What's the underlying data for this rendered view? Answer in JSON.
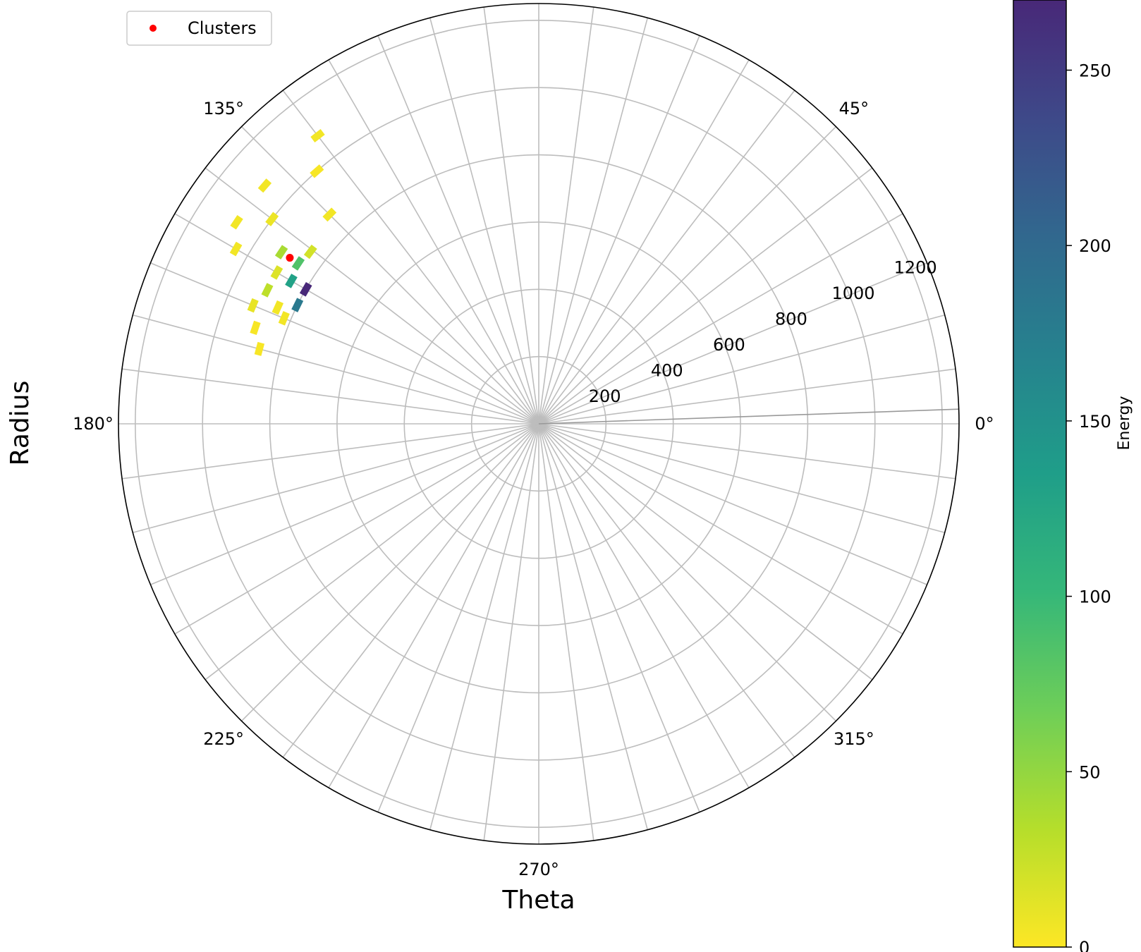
{
  "chart_data": {
    "type": "heatmap",
    "projection": "polar",
    "xlabel": "Theta",
    "ylabel": "Radius",
    "theta_ticks_deg": [
      0,
      45,
      135,
      180,
      225,
      270,
      315
    ],
    "theta_tick_labels": [
      "0°",
      "45°",
      "135°",
      "180°",
      "225°",
      "270°",
      "315°"
    ],
    "radial_ticks": [
      200,
      400,
      600,
      800,
      1000,
      1200
    ],
    "radial_tick_labels": [
      "200",
      "400",
      "600",
      "800",
      "1000",
      "1200"
    ],
    "rlim": [
      0,
      1250
    ],
    "theta_bins": 48,
    "radial_grid_at_label_angle_deg": 22.5,
    "grid": true,
    "colorbar": {
      "label": "Energy",
      "colormap": "viridis",
      "range": [
        0,
        270
      ],
      "ticks": [
        0,
        50,
        100,
        150,
        200,
        250
      ],
      "tick_labels": [
        "0",
        "50",
        "100",
        "150",
        "200",
        "250"
      ]
    },
    "legend": {
      "placement": "top-left",
      "entries": [
        "Clusters"
      ]
    },
    "cluster_series": {
      "name": "Clusters",
      "color": "#ff0000",
      "points": [
        {
          "theta_deg": 146.3,
          "r": 890
        }
      ]
    },
    "cells": [
      {
        "theta_deg": 127.5,
        "r": 1080,
        "energy": 5
      },
      {
        "theta_deg": 131.3,
        "r": 1000,
        "energy": 3
      },
      {
        "theta_deg": 139.0,
        "r": 1080,
        "energy": 5
      },
      {
        "theta_deg": 142.5,
        "r": 1000,
        "energy": 8
      },
      {
        "theta_deg": 146.3,
        "r": 1080,
        "energy": 5
      },
      {
        "theta_deg": 135.0,
        "r": 880,
        "energy": 5
      },
      {
        "theta_deg": 150.0,
        "r": 1040,
        "energy": 5
      },
      {
        "theta_deg": 143.0,
        "r": 850,
        "energy": 20
      },
      {
        "theta_deg": 146.3,
        "r": 860,
        "energy": 85
      },
      {
        "theta_deg": 146.3,
        "r": 920,
        "energy": 40
      },
      {
        "theta_deg": 150.0,
        "r": 900,
        "energy": 15
      },
      {
        "theta_deg": 150.0,
        "r": 850,
        "energy": 130
      },
      {
        "theta_deg": 150.0,
        "r": 800,
        "energy": 270
      },
      {
        "theta_deg": 153.8,
        "r": 800,
        "energy": 180
      },
      {
        "theta_deg": 153.8,
        "r": 900,
        "energy": 30
      },
      {
        "theta_deg": 156.0,
        "r": 850,
        "energy": 5
      },
      {
        "theta_deg": 157.5,
        "r": 920,
        "energy": 10
      },
      {
        "theta_deg": 157.5,
        "r": 820,
        "energy": 5
      },
      {
        "theta_deg": 161.3,
        "r": 890,
        "energy": 3
      },
      {
        "theta_deg": 165.0,
        "r": 860,
        "energy": 3
      }
    ]
  }
}
